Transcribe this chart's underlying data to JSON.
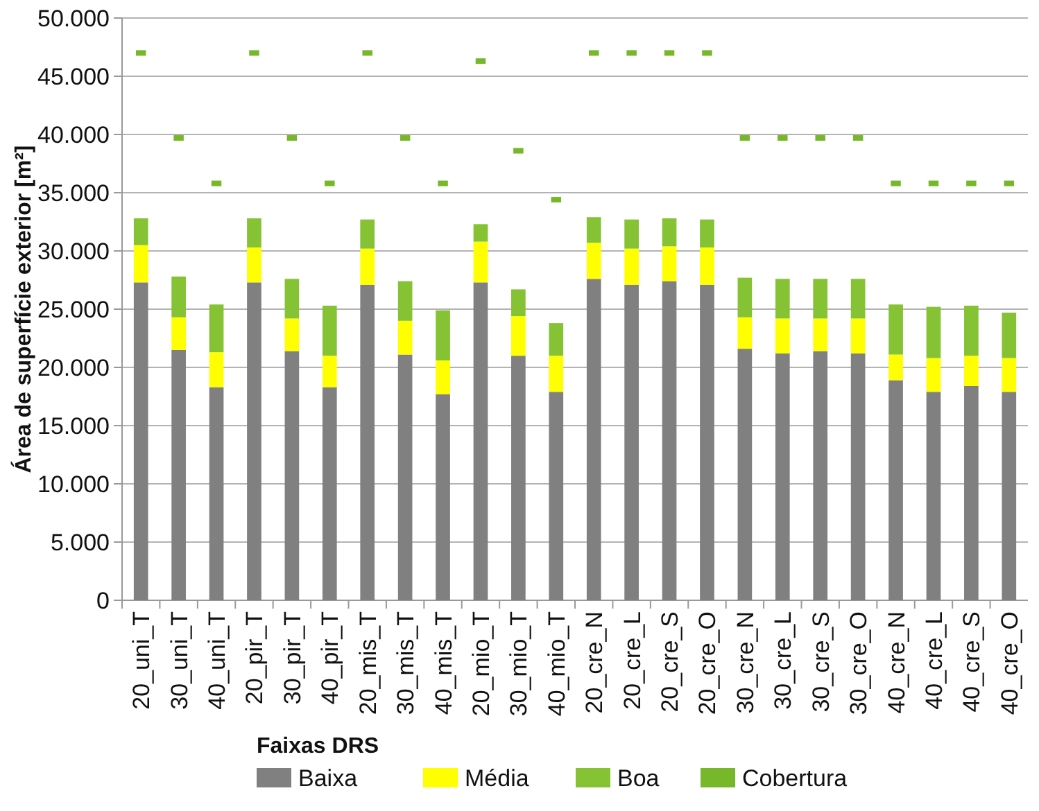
{
  "chart_data": {
    "type": "bar",
    "stacked": true,
    "ylabel": "Área de superfície exterior [m²]",
    "legend_title": "Faixas DRS",
    "legend": "bottom",
    "grid": "y",
    "categories": [
      "20_uni_T",
      "30_uni_T",
      "40_uni_T",
      "20_pir_T",
      "30_pir_T",
      "40_pir_T",
      "20_mis_T",
      "30_mis_T",
      "40_mis_T",
      "20_mio_T",
      "30_mio_T",
      "40_mio_T",
      "20_cre_N",
      "20_cre_L",
      "20_cre_S",
      "20_cre_O",
      "30_cre_N",
      "30_cre_L",
      "30_cre_S",
      "30_cre_O",
      "40_cre_N",
      "40_cre_L",
      "40_cre_S",
      "40_cre_O"
    ],
    "ylim": [
      0,
      50000
    ],
    "yticks": [
      {
        "value": 0,
        "label": "0"
      },
      {
        "value": 5000,
        "label": "5.000"
      },
      {
        "value": 10000,
        "label": "10.000"
      },
      {
        "value": 15000,
        "label": "15.000"
      },
      {
        "value": 20000,
        "label": "20.000"
      },
      {
        "value": 25000,
        "label": "25.000"
      },
      {
        "value": 30000,
        "label": "30.000"
      },
      {
        "value": 35000,
        "label": "35.000"
      },
      {
        "value": 40000,
        "label": "40.000"
      },
      {
        "value": 45000,
        "label": "45.000"
      },
      {
        "value": 50000,
        "label": "50.000"
      }
    ],
    "series": [
      {
        "name": "Baixa",
        "color": "#808080",
        "values": [
          27300,
          21500,
          18300,
          27300,
          21400,
          18300,
          27100,
          21100,
          17700,
          27300,
          21000,
          17900,
          27600,
          27100,
          27400,
          27100,
          21600,
          21200,
          21400,
          21200,
          18900,
          17900,
          18400,
          17900
        ]
      },
      {
        "name": "Média",
        "color": "#ffff00",
        "values": [
          3200,
          2800,
          3000,
          3000,
          2800,
          2700,
          3100,
          2900,
          2900,
          3500,
          3400,
          3100,
          3100,
          3100,
          3000,
          3200,
          2700,
          3000,
          2800,
          3000,
          2200,
          2900,
          2600,
          2900
        ]
      },
      {
        "name": "Boa",
        "color": "#85c234",
        "values": [
          2300,
          3500,
          4100,
          2500,
          3400,
          4300,
          2500,
          3400,
          4300,
          1500,
          2300,
          2800,
          2200,
          2500,
          2400,
          2400,
          3400,
          3400,
          3400,
          3400,
          4300,
          4400,
          4300,
          3900
        ]
      },
      {
        "name": "Cobertura",
        "type": "scatter",
        "color": "#77b82a",
        "values": [
          47000,
          39700,
          35800,
          47000,
          39700,
          35800,
          47000,
          39700,
          35800,
          46300,
          38600,
          34400,
          47000,
          47000,
          47000,
          47000,
          39700,
          39700,
          39700,
          39700,
          35800,
          35800,
          35800,
          35800
        ]
      }
    ]
  }
}
